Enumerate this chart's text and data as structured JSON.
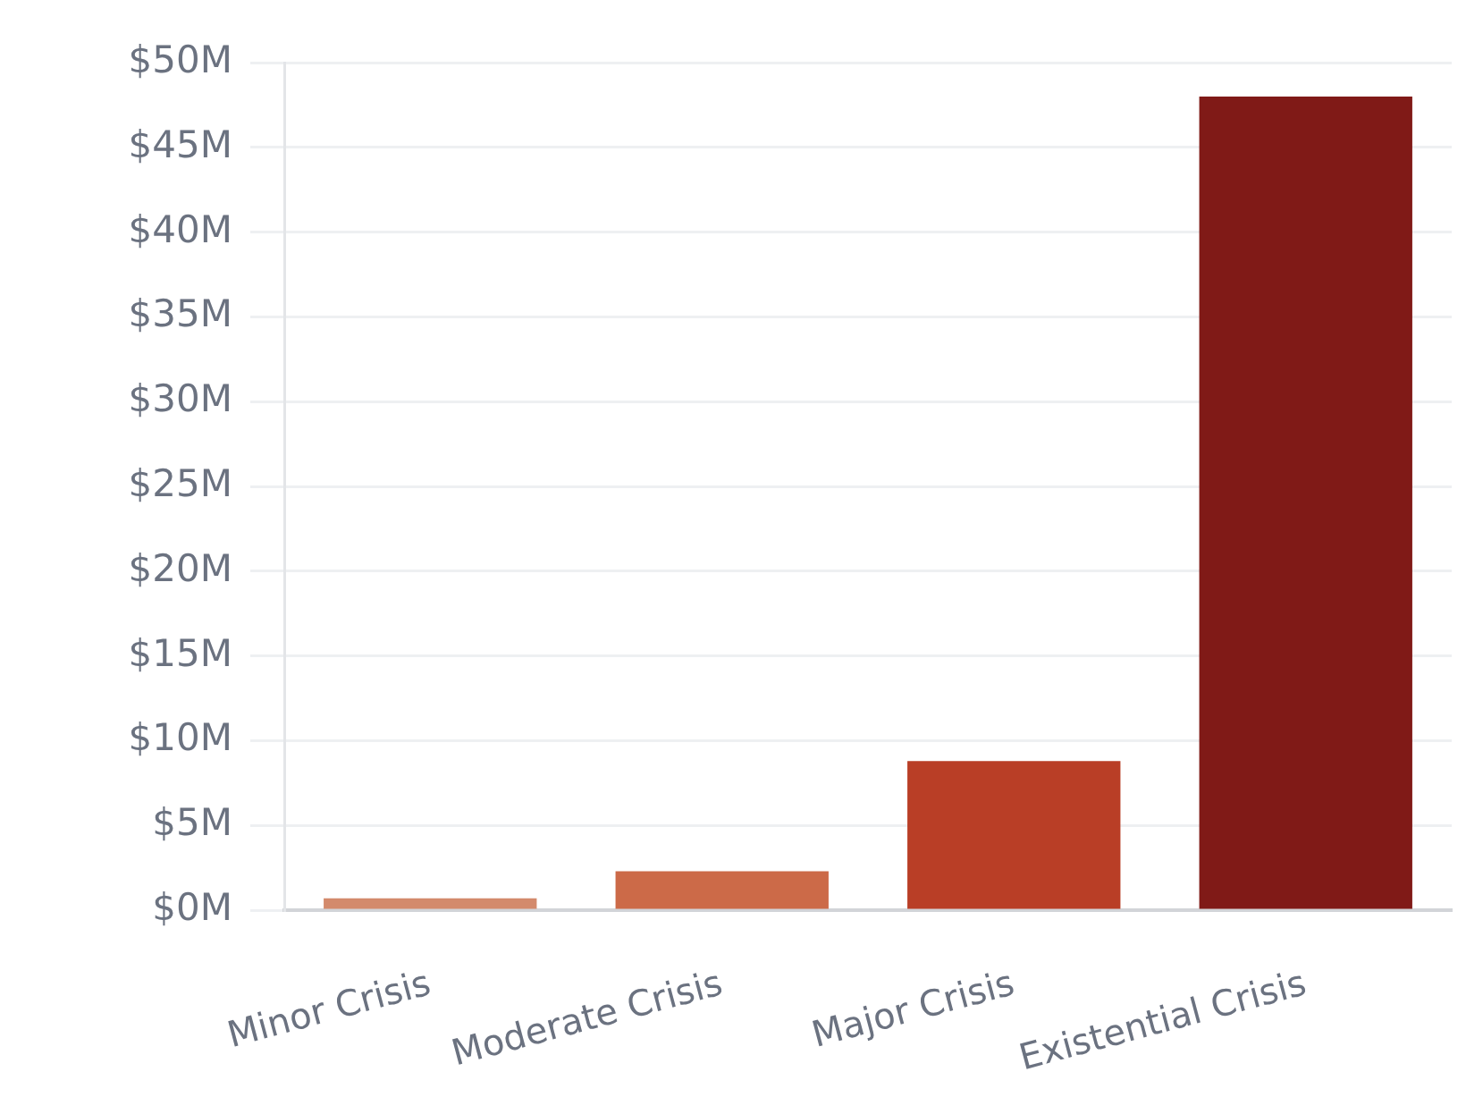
{
  "chart_data": {
    "type": "bar",
    "categories": [
      "Minor Crisis",
      "Moderate Crisis",
      "Major Crisis",
      "Existential Crisis"
    ],
    "values": [
      0.7,
      2.3,
      8.8,
      48
    ],
    "colors": [
      "#d38a6c",
      "#cc6a48",
      "#b93e26",
      "#801a17"
    ],
    "ylim": [
      0,
      50
    ],
    "yticks": [
      {
        "value": 0,
        "label": "$0M"
      },
      {
        "value": 5,
        "label": "$5M"
      },
      {
        "value": 10,
        "label": "$10M"
      },
      {
        "value": 15,
        "label": "$15M"
      },
      {
        "value": 20,
        "label": "$20M"
      },
      {
        "value": 25,
        "label": "$25M"
      },
      {
        "value": 30,
        "label": "$30M"
      },
      {
        "value": 35,
        "label": "$35M"
      },
      {
        "value": 40,
        "label": "$40M"
      },
      {
        "value": 45,
        "label": "$45M"
      },
      {
        "value": 50,
        "label": "$50M"
      }
    ],
    "grid": "y"
  }
}
